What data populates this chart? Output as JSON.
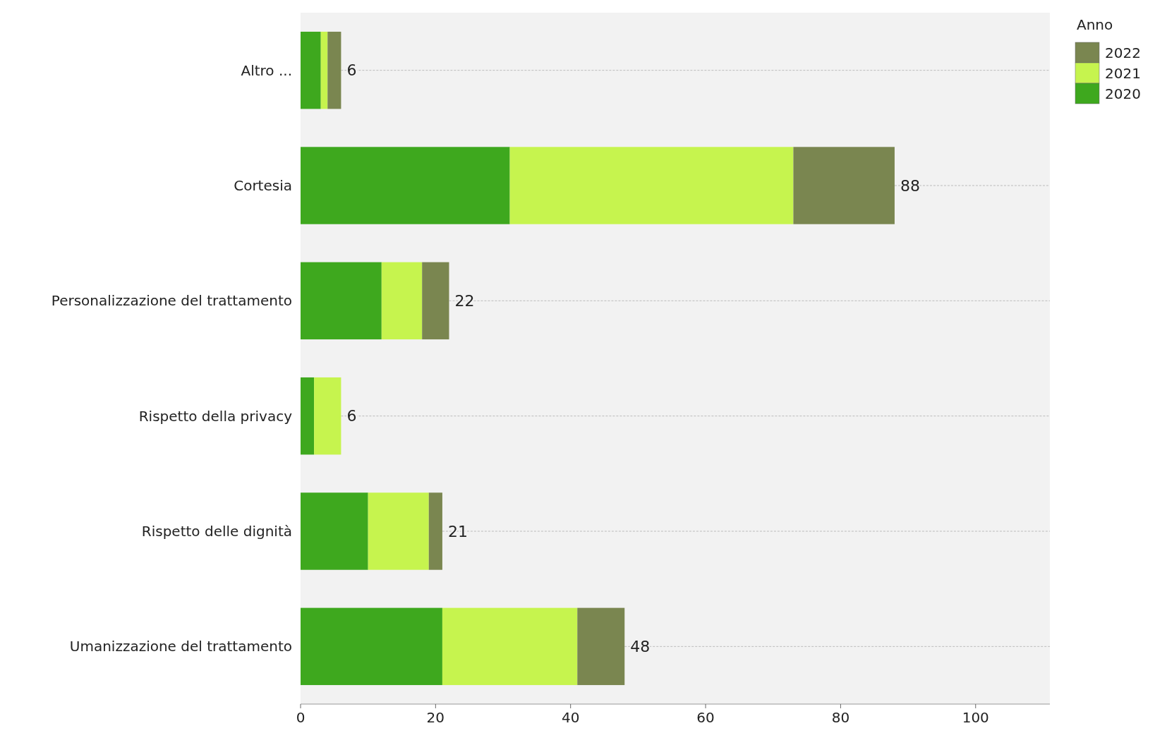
{
  "chart_data": {
    "type": "bar",
    "orientation": "horizontal",
    "stacked": true,
    "legend_title": "Anno",
    "legend": "top right",
    "grid": "y",
    "categories": [
      "Altro ...",
      "Cortesia",
      "Personalizzazione del trattamento",
      "Rispetto della privacy",
      "Rispetto delle dignità",
      "Umanizzazione del trattamento"
    ],
    "series": [
      {
        "name": "2020",
        "color": "#3ea81e",
        "values": [
          3,
          31,
          12,
          2,
          10,
          21
        ]
      },
      {
        "name": "2021",
        "color": "#c6f44e",
        "values": [
          1,
          42,
          6,
          4,
          9,
          20
        ]
      },
      {
        "name": "2022",
        "color": "#7a8650",
        "values": [
          2,
          15,
          4,
          0,
          2,
          7
        ]
      }
    ],
    "totals": [
      "6",
      "88",
      "22",
      "6",
      "21",
      "48"
    ],
    "xlim": [
      0,
      111
    ],
    "xticks": [
      0,
      20,
      40,
      60,
      80,
      100
    ]
  }
}
